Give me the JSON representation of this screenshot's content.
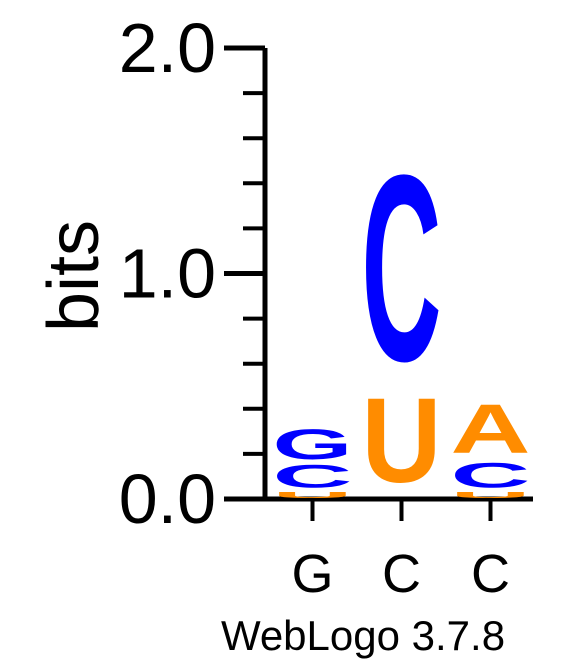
{
  "chart_data": {
    "type": "sequence_logo",
    "ylabel": "bits",
    "ylim": [
      0,
      2.0
    ],
    "y_tick_labels": [
      "0.0",
      "1.0",
      "2.0"
    ],
    "minor_tick_step": 0.2,
    "x_tick_labels": [
      "G",
      "C",
      "C"
    ],
    "footer": "WebLogo 3.7.8",
    "colors": {
      "G": "#0000ff",
      "C": "#0000ff",
      "A": "#ff8c00",
      "U": "#ff8c00"
    },
    "positions": [
      {
        "label": "G",
        "stack": [
          {
            "letter": "U",
            "height": 0.03
          },
          {
            "letter": "C",
            "height": 0.12
          },
          {
            "letter": "G",
            "height": 0.16
          }
        ]
      },
      {
        "label": "C",
        "stack": [
          {
            "letter": "U",
            "height": 0.45
          },
          {
            "letter": "C",
            "height": 0.99
          }
        ]
      },
      {
        "label": "C",
        "stack": [
          {
            "letter": "U",
            "height": 0.03
          },
          {
            "letter": "C",
            "height": 0.13
          },
          {
            "letter": "A",
            "height": 0.26
          }
        ]
      }
    ]
  }
}
